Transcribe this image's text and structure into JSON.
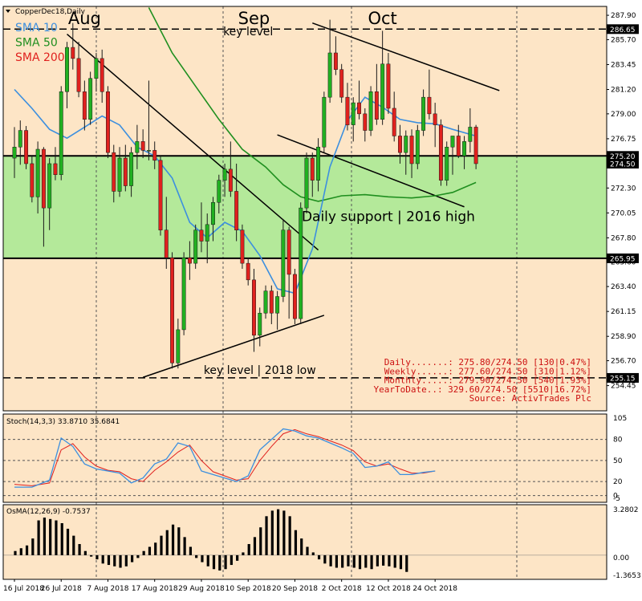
{
  "chart_data": {
    "type": "candlestick",
    "symbol_label": "CopperDec18,Daily",
    "colors": {
      "background": "#fde5c6",
      "frame": "#000000",
      "up_candle": "#21b021",
      "down_candle": "#e0211e",
      "wick": "#1a1a1a",
      "sma10": "#3c8fdf",
      "sma50": "#1f8f1f",
      "stoch_main": "#3c8fdf",
      "stoch_signal": "#e0211e",
      "osma_bars": "#000000",
      "support_zone": "#b4e99a",
      "current_price_box": "#000000",
      "stats_text": "#cc1010",
      "legend_sma200": "#e0211e"
    },
    "legend": [
      {
        "label": "SMA 10",
        "color": "#3c8fdf"
      },
      {
        "label": "SMA 50",
        "color": "#1f8f1f"
      },
      {
        "label": "SMA 200",
        "color": "#e0211e"
      }
    ],
    "month_labels": [
      {
        "text": "Aug",
        "x": 12
      },
      {
        "text": "Sep",
        "x": 41
      },
      {
        "text": "Oct",
        "x": 63
      }
    ],
    "date_labels": [
      {
        "text": "16 Jul 2018",
        "x": 0
      },
      {
        "text": "26 Jul 2018",
        "x": 8
      },
      {
        "text": "7 Aug 2018",
        "x": 16
      },
      {
        "text": "17 Aug 2018",
        "x": 24
      },
      {
        "text": "29 Aug 2018",
        "x": 32
      },
      {
        "text": "10 Sep 2018",
        "x": 40
      },
      {
        "text": "20 Sep 2018",
        "x": 48
      },
      {
        "text": "2 Oct 2018",
        "x": 56
      },
      {
        "text": "12 Oct 2018",
        "x": 64
      },
      {
        "text": "24 Oct 2018",
        "x": 72
      }
    ],
    "price_axis": {
      "min": 253.0,
      "max": 288.6,
      "ticks": [
        287.9,
        285.7,
        283.45,
        281.2,
        279.0,
        276.75,
        274.5,
        272.3,
        270.05,
        267.8,
        265.6,
        263.4,
        261.15,
        258.9,
        256.7,
        254.45
      ]
    },
    "price_markers": [
      {
        "value": 286.65,
        "label": "286.65",
        "style": "dashed"
      },
      {
        "value": 275.2,
        "label": "275.20",
        "style": "solid"
      },
      {
        "value": 274.5,
        "label": "274.50",
        "style": "current"
      },
      {
        "value": 265.95,
        "label": "265.95",
        "style": "solid"
      },
      {
        "value": 255.15,
        "label": "255.15",
        "style": "dashed"
      }
    ],
    "support_zone": {
      "from": 265.95,
      "to": 275.2
    },
    "ohlc": [
      [
        275.0,
        277.8,
        273.2,
        276.0
      ],
      [
        276.0,
        278.4,
        274.4,
        277.5
      ],
      [
        277.5,
        277.9,
        274.0,
        274.5
      ],
      [
        274.5,
        275.2,
        271.0,
        271.5
      ],
      [
        271.5,
        276.5,
        270.0,
        275.8
      ],
      [
        275.8,
        276.0,
        267.0,
        270.5
      ],
      [
        270.5,
        275.0,
        268.5,
        274.5
      ],
      [
        274.5,
        276.0,
        273.0,
        273.5
      ],
      [
        273.5,
        281.5,
        273.0,
        281.0
      ],
      [
        281.0,
        285.5,
        279.5,
        285.0
      ],
      [
        285.0,
        287.2,
        283.0,
        284.0
      ],
      [
        284.0,
        285.5,
        280.5,
        281.0
      ],
      [
        281.0,
        282.0,
        277.5,
        278.5
      ],
      [
        278.5,
        282.8,
        278.0,
        282.2
      ],
      [
        282.2,
        284.5,
        281.0,
        284.0
      ],
      [
        284.0,
        284.8,
        280.0,
        281.0
      ],
      [
        281.0,
        281.5,
        275.0,
        275.5
      ],
      [
        275.5,
        276.2,
        271.0,
        272.0
      ],
      [
        272.0,
        276.0,
        271.5,
        275.0
      ],
      [
        275.0,
        276.2,
        272.0,
        272.5
      ],
      [
        272.5,
        276.0,
        271.5,
        275.5
      ],
      [
        275.5,
        278.0,
        274.0,
        276.5
      ],
      [
        276.5,
        277.6,
        275.0,
        275.7
      ],
      [
        275.7,
        282.0,
        274.8,
        275.7
      ],
      [
        275.7,
        276.5,
        274.0,
        274.8
      ],
      [
        274.8,
        275.2,
        268.0,
        268.5
      ],
      [
        268.5,
        271.5,
        265.0,
        266.0
      ],
      [
        266.0,
        266.5,
        256.0,
        256.5
      ],
      [
        256.5,
        260.5,
        256.0,
        259.5
      ],
      [
        259.5,
        266.5,
        259.0,
        266.0
      ],
      [
        266.0,
        267.5,
        264.0,
        265.5
      ],
      [
        265.5,
        269.0,
        265.0,
        268.5
      ],
      [
        268.5,
        271.0,
        266.5,
        267.5
      ],
      [
        267.5,
        270.0,
        265.5,
        269.0
      ],
      [
        269.0,
        271.5,
        267.5,
        271.0
      ],
      [
        271.0,
        273.5,
        270.0,
        273.0
      ],
      [
        273.0,
        274.5,
        271.5,
        274.0
      ],
      [
        274.0,
        276.5,
        271.5,
        272.0
      ],
      [
        272.0,
        274.5,
        267.5,
        268.5
      ],
      [
        268.5,
        269.0,
        265.0,
        265.5
      ],
      [
        265.5,
        266.0,
        263.5,
        264.0
      ],
      [
        264.0,
        265.0,
        257.5,
        259.0
      ],
      [
        259.0,
        261.5,
        258.0,
        261.0
      ],
      [
        261.0,
        263.5,
        260.5,
        263.0
      ],
      [
        263.0,
        263.5,
        260.0,
        261.0
      ],
      [
        261.0,
        263.0,
        259.5,
        262.5
      ],
      [
        262.5,
        269.5,
        262.0,
        268.5
      ],
      [
        268.5,
        268.8,
        260.5,
        264.5
      ],
      [
        264.5,
        265.0,
        260.0,
        260.5
      ],
      [
        260.5,
        271.0,
        260.0,
        270.5
      ],
      [
        270.5,
        275.5,
        270.0,
        275.0
      ],
      [
        275.0,
        275.5,
        271.5,
        273.0
      ],
      [
        273.0,
        276.8,
        272.0,
        276.0
      ],
      [
        276.0,
        281.0,
        275.5,
        280.5
      ],
      [
        280.5,
        287.5,
        280.0,
        284.5
      ],
      [
        284.5,
        286.0,
        282.5,
        283.0
      ],
      [
        283.0,
        283.5,
        280.0,
        280.5
      ],
      [
        280.5,
        281.8,
        277.5,
        278.0
      ],
      [
        278.0,
        280.5,
        276.5,
        280.0
      ],
      [
        280.0,
        282.0,
        278.5,
        279.0
      ],
      [
        279.0,
        279.5,
        276.5,
        277.5
      ],
      [
        277.5,
        281.5,
        277.0,
        281.0
      ],
      [
        281.0,
        283.5,
        278.0,
        278.5
      ],
      [
        278.5,
        286.5,
        278.0,
        283.5
      ],
      [
        283.5,
        284.5,
        279.0,
        279.5
      ],
      [
        279.5,
        281.0,
        276.5,
        277.0
      ],
      [
        277.0,
        278.0,
        274.5,
        275.5
      ],
      [
        275.5,
        277.5,
        273.5,
        277.0
      ],
      [
        277.0,
        277.6,
        273.2,
        274.5
      ],
      [
        274.5,
        278.0,
        274.0,
        277.5
      ],
      [
        277.5,
        281.2,
        277.0,
        280.5
      ],
      [
        280.5,
        283.0,
        278.5,
        279.0
      ],
      [
        279.0,
        280.0,
        276.0,
        278.0
      ],
      [
        278.0,
        278.5,
        272.5,
        273.0
      ],
      [
        273.0,
        276.5,
        272.5,
        276.0
      ],
      [
        276.0,
        277.0,
        273.5,
        277.0
      ],
      [
        277.0,
        278.0,
        275.0,
        275.2
      ],
      [
        275.2,
        277.0,
        274.0,
        276.5
      ],
      [
        276.5,
        279.5,
        275.5,
        277.8
      ],
      [
        277.8,
        278.0,
        274.0,
        274.5
      ]
    ],
    "sma10": [
      [
        0,
        281.2
      ],
      [
        3,
        279.5
      ],
      [
        6,
        277.6
      ],
      [
        9,
        276.8
      ],
      [
        12,
        277.8
      ],
      [
        15,
        278.8
      ],
      [
        18,
        278.0
      ],
      [
        21,
        276.0
      ],
      [
        24,
        275.2
      ],
      [
        27,
        273.2
      ],
      [
        30,
        269.2
      ],
      [
        33,
        267.8
      ],
      [
        36,
        269.2
      ],
      [
        39,
        268.4
      ],
      [
        42,
        266.2
      ],
      [
        45,
        263.2
      ],
      [
        48,
        262.8
      ],
      [
        51,
        266.8
      ],
      [
        54,
        274.2
      ],
      [
        57,
        278.4
      ],
      [
        60,
        280.5
      ],
      [
        63,
        279.6
      ],
      [
        66,
        278.5
      ],
      [
        69,
        278.2
      ],
      [
        72,
        278.1
      ],
      [
        75,
        277.6
      ],
      [
        79,
        277.0
      ]
    ],
    "sma50": [
      [
        23,
        288.6
      ],
      [
        27,
        284.5
      ],
      [
        31,
        281.5
      ],
      [
        35,
        278.5
      ],
      [
        39,
        275.8
      ],
      [
        43,
        274.2
      ],
      [
        46,
        272.6
      ],
      [
        49,
        271.5
      ],
      [
        52,
        271.1
      ],
      [
        56,
        271.6
      ],
      [
        60,
        271.7
      ],
      [
        64,
        271.5
      ],
      [
        68,
        271.4
      ],
      [
        72,
        271.6
      ],
      [
        75,
        271.9
      ],
      [
        79,
        272.8
      ]
    ],
    "sma_slopes": [
      [
        275.5,
        277.5
      ],
      [
        275.5,
        275.0
      ]
    ],
    "trendlines": [
      {
        "name": "Aug downtrend",
        "points": [
          [
            9,
            286.2
          ],
          [
            52,
            266.7
          ]
        ]
      },
      {
        "name": "Aug-Sep rising support",
        "points": [
          [
            22,
            255.2
          ],
          [
            53,
            260.8
          ]
        ]
      },
      {
        "name": "Sep-Oct upper channel",
        "points": [
          [
            51,
            287.2
          ],
          [
            83,
            281.1
          ]
        ]
      },
      {
        "name": "Sep-Oct lower channel",
        "points": [
          [
            45,
            277.1
          ],
          [
            77,
            270.6
          ]
        ]
      }
    ],
    "annotations": [
      {
        "text": "key level",
        "x": 40,
        "price": 286.1
      },
      {
        "text": "Daily support | 2016 high",
        "x": 64,
        "price": 269.3
      },
      {
        "text": "key level | 2018 low",
        "x": 42,
        "price": 255.5
      }
    ],
    "stats": {
      "rows": [
        "Daily.......: 275.80/274.50 [130|0.47%]",
        "Weekly......: 277.60/274.50 [310|1.12%]",
        "Monthly.....: 279.90/274.50 [540|1.93%]",
        "YearToDate..: 329.60/274.50 [5510|16.72%]",
        "Source: ActivTrades Plc"
      ]
    },
    "stoch": {
      "label": "Stoch(14,3,3) 33.8710 35.6841",
      "scale_max": "105",
      "scale_min": "-5",
      "levels": [
        {
          "value": 80,
          "label": "80"
        },
        {
          "value": 50,
          "label": "50"
        },
        {
          "value": 20,
          "label": "20"
        },
        {
          "value": 0,
          "label": "0"
        }
      ],
      "main": [
        [
          0,
          12
        ],
        [
          3,
          12
        ],
        [
          6,
          22
        ],
        [
          8,
          82
        ],
        [
          10,
          70
        ],
        [
          12,
          45
        ],
        [
          14,
          38
        ],
        [
          16,
          35
        ],
        [
          18,
          32
        ],
        [
          20,
          18
        ],
        [
          22,
          25
        ],
        [
          24,
          45
        ],
        [
          26,
          52
        ],
        [
          28,
          75
        ],
        [
          30,
          70
        ],
        [
          32,
          35
        ],
        [
          34,
          30
        ],
        [
          36,
          25
        ],
        [
          38,
          20
        ],
        [
          40,
          28
        ],
        [
          42,
          65
        ],
        [
          44,
          80
        ],
        [
          46,
          95
        ],
        [
          48,
          92
        ],
        [
          50,
          85
        ],
        [
          52,
          82
        ],
        [
          54,
          75
        ],
        [
          56,
          68
        ],
        [
          58,
          60
        ],
        [
          60,
          40
        ],
        [
          62,
          42
        ],
        [
          64,
          48
        ],
        [
          66,
          30
        ],
        [
          68,
          30
        ],
        [
          70,
          33
        ],
        [
          72,
          35
        ]
      ],
      "signal": [
        [
          0,
          16
        ],
        [
          3,
          14
        ],
        [
          6,
          18
        ],
        [
          8,
          65
        ],
        [
          10,
          74
        ],
        [
          12,
          55
        ],
        [
          14,
          42
        ],
        [
          16,
          36
        ],
        [
          18,
          34
        ],
        [
          20,
          24
        ],
        [
          22,
          20
        ],
        [
          24,
          36
        ],
        [
          26,
          48
        ],
        [
          28,
          62
        ],
        [
          30,
          72
        ],
        [
          32,
          50
        ],
        [
          34,
          34
        ],
        [
          36,
          28
        ],
        [
          38,
          22
        ],
        [
          40,
          24
        ],
        [
          42,
          50
        ],
        [
          44,
          70
        ],
        [
          46,
          88
        ],
        [
          48,
          94
        ],
        [
          50,
          88
        ],
        [
          52,
          84
        ],
        [
          54,
          78
        ],
        [
          56,
          72
        ],
        [
          58,
          64
        ],
        [
          60,
          48
        ],
        [
          62,
          42
        ],
        [
          64,
          45
        ],
        [
          66,
          38
        ],
        [
          68,
          32
        ],
        [
          70,
          32
        ],
        [
          72,
          35
        ]
      ]
    },
    "osma": {
      "label": "OsMA(12,26,9) -0.7537",
      "top_label": "3.2802",
      "zero_label": "0.00",
      "bottom_label": "-1.3653",
      "max": 3.2802,
      "min": -1.3653,
      "values": [
        0.3,
        0.5,
        0.7,
        1.2,
        2.5,
        2.7,
        2.6,
        2.5,
        2.3,
        1.9,
        1.4,
        0.8,
        0.3,
        -0.1,
        -0.3,
        -0.6,
        -0.7,
        -0.8,
        -0.9,
        -0.8,
        -0.5,
        -0.2,
        0.3,
        0.6,
        0.9,
        1.4,
        1.8,
        2.2,
        2.0,
        1.3,
        0.6,
        -0.2,
        -0.5,
        -0.8,
        -1.0,
        -1.1,
        -1.0,
        -0.7,
        -0.4,
        0.2,
        0.8,
        1.3,
        2.0,
        2.8,
        3.2,
        3.3,
        3.2,
        2.8,
        1.8,
        1.2,
        0.6,
        0.2,
        -0.3,
        -0.6,
        -0.8,
        -0.9,
        -0.9,
        -0.8,
        -0.9,
        -1.0,
        -0.9,
        -1.0,
        -0.8,
        -0.75,
        -0.8,
        -0.9,
        -1.0,
        -1.2
      ]
    }
  }
}
